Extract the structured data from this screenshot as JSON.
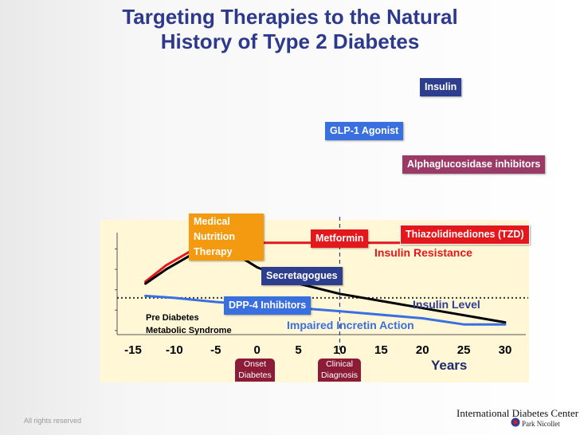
{
  "title_lines": [
    "Targeting Therapies to the Natural",
    "History of Type 2 Diabetes"
  ],
  "labels": {
    "insulin": "Insulin",
    "glp1": "GLP-1 Agonist",
    "alpha": "Alphaglucosidase inhibitors",
    "mnt_lines": [
      "Medical",
      "Nutrition",
      "Therapy"
    ],
    "metformin": "Metformin",
    "tzd": "Thiazolidinediones (TZD)",
    "secretagogues": "Secretagogues",
    "dpp4": "DPP-4 Inhibitors"
  },
  "colors": {
    "title": "#2d3a8c",
    "insulin": "#2e3e8e",
    "glp1": "#3a6fe0",
    "alpha": "#9b3a66",
    "mnt": "#f39a10",
    "metformin": "#e3171c",
    "tzd": "#e3171c",
    "secretagogues": "#2e3e8e",
    "dpp4": "#3a6fe0",
    "onset": "#8b1b36"
  },
  "chart_data": {
    "type": "line",
    "title": "Targeting Therapies to the Natural History of Type 2 Diabetes",
    "xlabel": "Years",
    "xlim": [
      -17,
      32
    ],
    "ylim": [
      0,
      5
    ],
    "x_ticks": [
      -15,
      -10,
      -5,
      0,
      5,
      10,
      15,
      20,
      25,
      30
    ],
    "series": [
      {
        "name": "Insulin Resistance",
        "color": "#e3171c",
        "x": [
          -13.5,
          -11,
          -8,
          -5,
          -2,
          0,
          5,
          10,
          20,
          30
        ],
        "y": [
          2.6,
          3.4,
          4.1,
          4.4,
          4.5,
          4.5,
          4.5,
          4.5,
          4.5,
          4.5
        ]
      },
      {
        "name": "Insulin Level",
        "color": "#000000",
        "x": [
          -13.5,
          -11,
          -8,
          -5,
          -2,
          0,
          5,
          10,
          20,
          30
        ],
        "y": [
          2.5,
          3.2,
          3.9,
          4.2,
          3.8,
          3.3,
          2.5,
          2.0,
          1.3,
          0.6
        ]
      },
      {
        "name": "Impaired Incretin Action",
        "color": "#3a6fe0",
        "x": [
          -13.5,
          -10,
          -5,
          0,
          5,
          10,
          20,
          25,
          30
        ],
        "y": [
          1.9,
          1.8,
          1.6,
          1.45,
          1.3,
          1.15,
          0.8,
          0.5,
          0.5
        ]
      }
    ],
    "series_labels": {
      "insulin_resistance": "Insulin Resistance",
      "insulin_level": "Insulin Level",
      "incretin": "Impaired Incretin Action"
    },
    "annotations": {
      "pre_diabetes_lines": [
        "Pre Diabetes",
        "Metabolic Syndrome"
      ],
      "onset_lines": [
        "Onset",
        "Diabetes"
      ],
      "clinical_lines": [
        "Clinical",
        "Diagnosis"
      ]
    },
    "threshold_y": 1.8,
    "diagnosis_x": 10
  },
  "footer": {
    "rights": "All rights reserved",
    "logo_main": "International Diabetes Center",
    "logo_sub": "Park Nicollet"
  }
}
